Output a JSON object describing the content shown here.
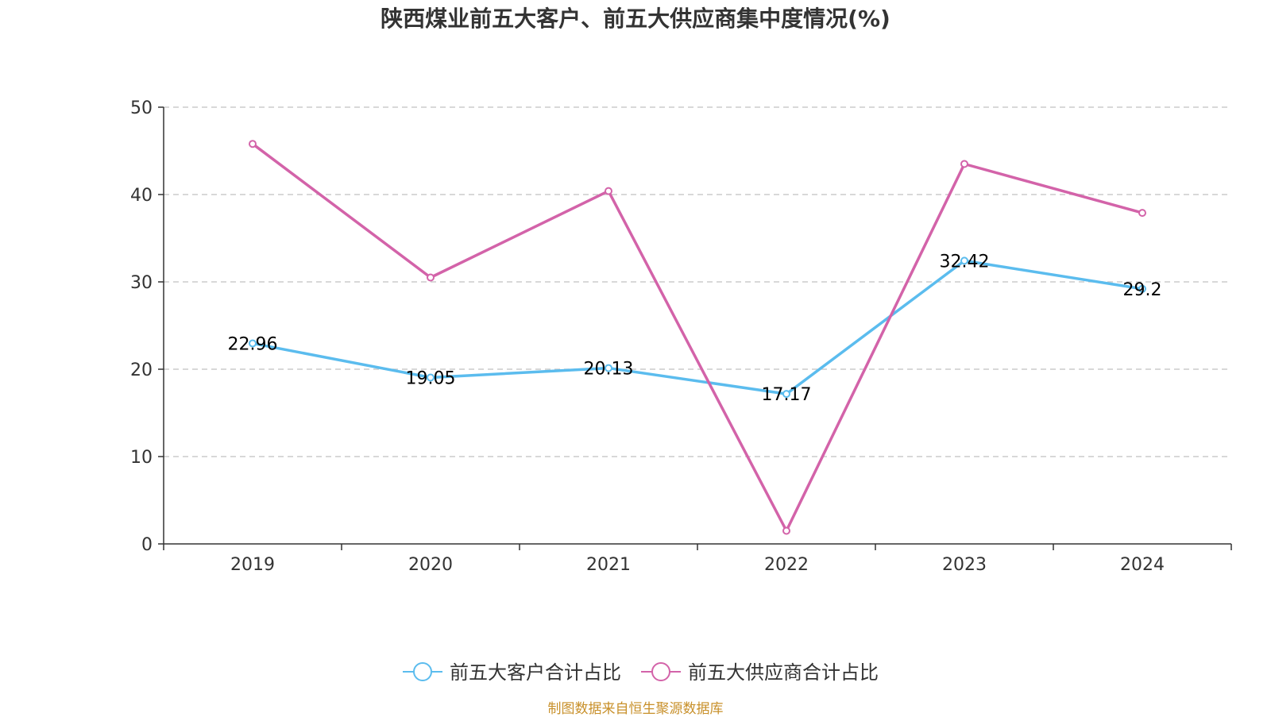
{
  "chart_data": {
    "type": "line",
    "title": "陕西煤业前五大客户、前五大供应商集中度情况(%)",
    "categories": [
      "2019",
      "2020",
      "2021",
      "2022",
      "2023",
      "2024"
    ],
    "ylim": [
      0,
      50
    ],
    "yticks": [
      0,
      10,
      20,
      30,
      40,
      50
    ],
    "grid": true,
    "legend_position": "bottom-center",
    "series": [
      {
        "name": "前五大客户合计占比",
        "color": "#5bbcee",
        "values": [
          22.96,
          19.05,
          20.13,
          17.17,
          32.42,
          29.2
        ],
        "labels": [
          "22.96",
          "19.05",
          "20.13",
          "17.17",
          "32.42",
          "29.2"
        ]
      },
      {
        "name": "前五大供应商合计占比",
        "color": "#d363a9",
        "values": [
          45.8,
          30.5,
          40.4,
          1.5,
          43.5,
          37.9
        ]
      }
    ]
  },
  "footer": {
    "source": "制图数据来自恒生聚源数据库"
  }
}
